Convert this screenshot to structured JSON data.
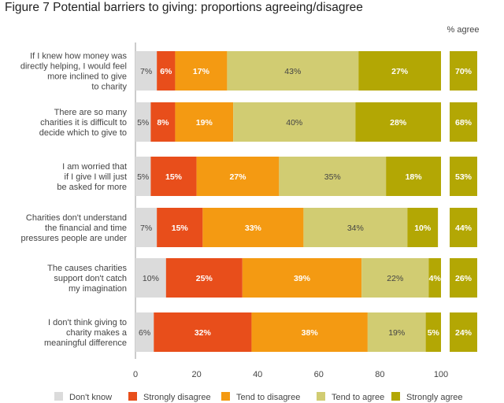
{
  "figure": {
    "title": "Figure 7  Potential barriers to giving: proportions agreeing/disagree"
  },
  "chart_data": {
    "type": "bar",
    "orientation": "horizontal",
    "stacked": true,
    "title": "Figure 7  Potential barriers to giving: proportions agreeing/disagree",
    "xlabel": "",
    "ylabel": "",
    "xlim": [
      0,
      100
    ],
    "xticks": [
      0,
      20,
      40,
      60,
      80,
      100
    ],
    "grid": false,
    "legend_position": "bottom",
    "side_column_header": "% agree",
    "categories": [
      [
        "If I knew how money was",
        "directly helping, I would feel",
        "more inclined to give",
        "to charity"
      ],
      [
        "There are so many",
        "charities it is difficult to",
        "decide which to give to"
      ],
      [
        "I am worried that",
        "if I give I will just",
        "be asked for more"
      ],
      [
        "Charities don't understand",
        "the financial and time",
        "pressures people are under"
      ],
      [
        "The causes charities",
        "support don't catch",
        "my imagination"
      ],
      [
        "I don't think giving to",
        "charity makes a",
        "meaningful difference"
      ]
    ],
    "series": [
      {
        "name": "Don't know",
        "color": "#dbdbdb",
        "values": [
          7,
          5,
          5,
          7,
          10,
          6
        ]
      },
      {
        "name": "Strongly disagree",
        "color": "#e84e1b",
        "values": [
          6,
          8,
          15,
          15,
          25,
          32
        ]
      },
      {
        "name": "Tend to disagree",
        "color": "#f49a12",
        "values": [
          17,
          19,
          27,
          33,
          39,
          38
        ]
      },
      {
        "name": "Tend to agree",
        "color": "#d1cc72",
        "values": [
          43,
          40,
          35,
          34,
          22,
          19
        ]
      },
      {
        "name": "Strongly agree",
        "color": "#b3a704",
        "values": [
          27,
          28,
          18,
          10,
          4,
          5
        ]
      }
    ],
    "percent_agree": [
      70,
      68,
      53,
      44,
      26,
      24
    ],
    "percent_agree_color": "#b3a704"
  }
}
